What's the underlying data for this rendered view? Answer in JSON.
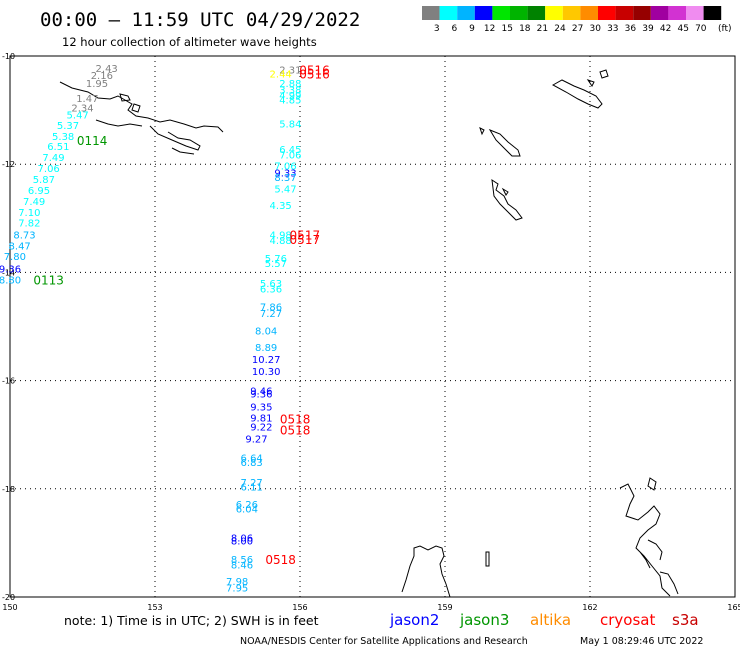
{
  "title": "00:00 – 11:59 UTC 04/29/2022",
  "subtitle": "12 hour collection of altimeter wave heights",
  "note": "note: 1) Time is in UTC; 2) SWH is in feet",
  "credit": "NOAA/NESDIS Center for Satellite Applications and Research",
  "timestamp": "May  1 08:29:46 UTC 2022",
  "legend": {
    "unit": "(ft)",
    "bins": [
      {
        "label": "3",
        "color": "#808080"
      },
      {
        "label": "6",
        "color": "#00ffff"
      },
      {
        "label": "9",
        "color": "#00b4ff"
      },
      {
        "label": "12",
        "color": "#0000ff"
      },
      {
        "label": "15",
        "color": "#00e600"
      },
      {
        "label": "18",
        "color": "#00b400"
      },
      {
        "label": "21",
        "color": "#008200"
      },
      {
        "label": "24",
        "color": "#ffff00"
      },
      {
        "label": "27",
        "color": "#ffc800"
      },
      {
        "label": "30",
        "color": "#ff8c00"
      },
      {
        "label": "33",
        "color": "#ff0000"
      },
      {
        "label": "36",
        "color": "#c80000"
      },
      {
        "label": "39",
        "color": "#960000"
      },
      {
        "label": "42",
        "color": "#a000a0"
      },
      {
        "label": "45",
        "color": "#d232d2"
      },
      {
        "label": "70",
        "color": "#f08cf0"
      },
      {
        "label": "",
        "color": "#000000"
      }
    ]
  },
  "satellites": [
    {
      "name": "jason2",
      "color": "#0000ff"
    },
    {
      "name": "jason3",
      "color": "#009600"
    },
    {
      "name": "altika",
      "color": "#ff8c00"
    },
    {
      "name": "cryosat",
      "color": "#ff0000"
    },
    {
      "name": "s3a",
      "color": "#c80000"
    }
  ],
  "chart_data": {
    "type": "scatter",
    "xlim": [
      150,
      165
    ],
    "ylim": [
      -20,
      -10
    ],
    "x_ticks": [
      "150",
      "153",
      "156",
      "159",
      "162",
      "165"
    ],
    "y_ticks": [
      "-10",
      "-12",
      "-14",
      "-16",
      "-18",
      "-20"
    ],
    "grid": true,
    "points": [
      {
        "x": 155.8,
        "y": -10.25,
        "label": "2.31",
        "color": "#808080"
      },
      {
        "x": 155.6,
        "y": -10.32,
        "label": "2.44",
        "color": "#ffff00"
      },
      {
        "x": 155.8,
        "y": -10.5,
        "label": "2.88",
        "color": "#00ffff"
      },
      {
        "x": 155.8,
        "y": -10.62,
        "label": "3.38",
        "color": "#00ffff"
      },
      {
        "x": 155.8,
        "y": -10.72,
        "label": "4.99",
        "color": "#00ffff"
      },
      {
        "x": 155.8,
        "y": -10.8,
        "label": "4.85",
        "color": "#00ffff"
      },
      {
        "x": 155.8,
        "y": -11.25,
        "label": "5.84",
        "color": "#00ffff"
      },
      {
        "x": 155.8,
        "y": -11.72,
        "label": "6.45",
        "color": "#00ffff"
      },
      {
        "x": 155.8,
        "y": -11.82,
        "label": "7.06",
        "color": "#00ffff"
      },
      {
        "x": 155.7,
        "y": -12.02,
        "label": "7.06",
        "color": "#00ffff"
      },
      {
        "x": 155.7,
        "y": -12.15,
        "label": "9.33",
        "color": "#0000ff"
      },
      {
        "x": 155.7,
        "y": -12.24,
        "label": "8.37",
        "color": "#00b4ff"
      },
      {
        "x": 155.7,
        "y": -12.45,
        "label": "5.47",
        "color": "#00ffff"
      },
      {
        "x": 155.6,
        "y": -12.75,
        "label": "4.35",
        "color": "#00ffff"
      },
      {
        "x": 155.6,
        "y": -13.3,
        "label": "4.98",
        "color": "#00ffff"
      },
      {
        "x": 155.6,
        "y": -13.4,
        "label": "4.88",
        "color": "#00ffff"
      },
      {
        "x": 155.5,
        "y": -13.73,
        "label": "5.76",
        "color": "#00ffff"
      },
      {
        "x": 155.5,
        "y": -13.83,
        "label": "5.57",
        "color": "#00ffff"
      },
      {
        "x": 155.4,
        "y": -14.2,
        "label": "5.63",
        "color": "#00ffff"
      },
      {
        "x": 155.4,
        "y": -14.3,
        "label": "6.36",
        "color": "#00ffff"
      },
      {
        "x": 155.4,
        "y": -14.63,
        "label": "7.86",
        "color": "#00b4ff"
      },
      {
        "x": 155.4,
        "y": -14.75,
        "label": "7.27",
        "color": "#00b4ff"
      },
      {
        "x": 155.3,
        "y": -15.07,
        "label": "8.04",
        "color": "#00b4ff"
      },
      {
        "x": 155.3,
        "y": -15.38,
        "label": "8.89",
        "color": "#00b4ff"
      },
      {
        "x": 155.3,
        "y": -15.6,
        "label": "10.27",
        "color": "#0000ff"
      },
      {
        "x": 155.3,
        "y": -15.82,
        "label": "10.30",
        "color": "#0000ff"
      },
      {
        "x": 155.2,
        "y": -16.18,
        "label": "9.46",
        "color": "#0000ff"
      },
      {
        "x": 155.2,
        "y": -16.24,
        "label": "9.36",
        "color": "#0000ff"
      },
      {
        "x": 155.2,
        "y": -16.48,
        "label": "9.35",
        "color": "#0000ff"
      },
      {
        "x": 155.2,
        "y": -16.68,
        "label": "9.81",
        "color": "#0000ff"
      },
      {
        "x": 155.2,
        "y": -16.85,
        "label": "9.22",
        "color": "#0000ff"
      },
      {
        "x": 155.1,
        "y": -17.07,
        "label": "9.27",
        "color": "#0000ff"
      },
      {
        "x": 155.0,
        "y": -17.42,
        "label": "6.64",
        "color": "#00b4ff"
      },
      {
        "x": 155.0,
        "y": -17.5,
        "label": "6.83",
        "color": "#00b4ff"
      },
      {
        "x": 155.0,
        "y": -17.87,
        "label": "7.27",
        "color": "#00b4ff"
      },
      {
        "x": 155.0,
        "y": -17.96,
        "label": "6.11",
        "color": "#00b4ff"
      },
      {
        "x": 154.9,
        "y": -18.28,
        "label": "6.26",
        "color": "#00b4ff"
      },
      {
        "x": 154.9,
        "y": -18.36,
        "label": "6.04",
        "color": "#00b4ff"
      },
      {
        "x": 154.8,
        "y": -18.9,
        "label": "8.06",
        "color": "#0000ff"
      },
      {
        "x": 154.8,
        "y": -18.96,
        "label": "8.00",
        "color": "#0000ff"
      },
      {
        "x": 154.8,
        "y": -19.3,
        "label": "8.56",
        "color": "#00b4ff"
      },
      {
        "x": 154.8,
        "y": -19.4,
        "label": "8.46",
        "color": "#00b4ff"
      },
      {
        "x": 154.7,
        "y": -19.7,
        "label": "7.98",
        "color": "#00b4ff"
      },
      {
        "x": 154.7,
        "y": -19.82,
        "label": "7.95",
        "color": "#00b4ff"
      },
      {
        "x": 152.0,
        "y": -10.22,
        "label": "2.43",
        "color": "#808080"
      },
      {
        "x": 151.9,
        "y": -10.35,
        "label": "2.16",
        "color": "#808080"
      },
      {
        "x": 151.8,
        "y": -10.5,
        "label": "1.95",
        "color": "#808080"
      },
      {
        "x": 151.6,
        "y": -10.78,
        "label": "1.47",
        "color": "#808080"
      },
      {
        "x": 151.5,
        "y": -10.95,
        "label": "2.34",
        "color": "#808080"
      },
      {
        "x": 151.4,
        "y": -11.08,
        "label": "5.47",
        "color": "#00ffff"
      },
      {
        "x": 151.2,
        "y": -11.28,
        "label": "5.37",
        "color": "#00ffff"
      },
      {
        "x": 151.1,
        "y": -11.48,
        "label": "5.38",
        "color": "#00ffff"
      },
      {
        "x": 151.0,
        "y": -11.66,
        "label": "6.51",
        "color": "#00ffff"
      },
      {
        "x": 150.9,
        "y": -11.87,
        "label": "7.49",
        "color": "#00ffff"
      },
      {
        "x": 150.8,
        "y": -12.07,
        "label": "7.06",
        "color": "#00ffff"
      },
      {
        "x": 150.7,
        "y": -12.27,
        "label": "5.87",
        "color": "#00ffff"
      },
      {
        "x": 150.6,
        "y": -12.48,
        "label": "6.95",
        "color": "#00ffff"
      },
      {
        "x": 150.5,
        "y": -12.68,
        "label": "7.49",
        "color": "#00ffff"
      },
      {
        "x": 150.4,
        "y": -12.88,
        "label": "7.10",
        "color": "#00ffff"
      },
      {
        "x": 150.4,
        "y": -13.08,
        "label": "7.82",
        "color": "#00ffff"
      },
      {
        "x": 150.3,
        "y": -13.3,
        "label": "8.73",
        "color": "#00b4ff"
      },
      {
        "x": 150.2,
        "y": -13.5,
        "label": "8.47",
        "color": "#00b4ff"
      },
      {
        "x": 150.1,
        "y": -13.7,
        "label": "7.80",
        "color": "#00b4ff"
      },
      {
        "x": 150.0,
        "y": -13.93,
        "label": "9.36",
        "color": "#0000ff"
      },
      {
        "x": 150.0,
        "y": -14.13,
        "label": "8.80",
        "color": "#00b4ff"
      }
    ],
    "track_labels": [
      {
        "x": 156.3,
        "y": -10.25,
        "label": "0516",
        "color": "#ff0000"
      },
      {
        "x": 156.3,
        "y": -10.32,
        "label": "0516",
        "color": "#ff0000"
      },
      {
        "x": 151.7,
        "y": -11.55,
        "label": "0114",
        "color": "#009600"
      },
      {
        "x": 156.1,
        "y": -13.3,
        "label": "0517",
        "color": "#ff0000"
      },
      {
        "x": 156.1,
        "y": -13.38,
        "label": "0517",
        "color": "#ff0000"
      },
      {
        "x": 150.8,
        "y": -14.13,
        "label": "0113",
        "color": "#009600"
      },
      {
        "x": 155.9,
        "y": -16.7,
        "label": "0518",
        "color": "#ff0000"
      },
      {
        "x": 155.9,
        "y": -16.9,
        "label": "0518",
        "color": "#ff0000"
      },
      {
        "x": 155.6,
        "y": -19.3,
        "label": "0518",
        "color": "#ff0000"
      }
    ]
  }
}
